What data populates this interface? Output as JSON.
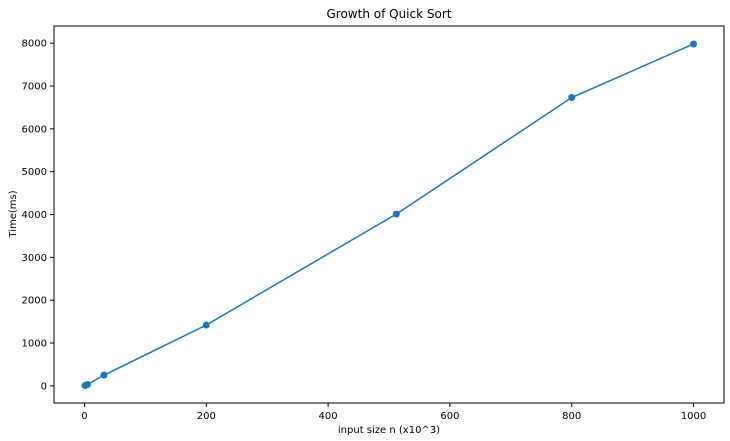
{
  "chart_data": {
    "type": "line",
    "title": "Growth of Quick Sort",
    "xlabel": "input size n (x10^3)",
    "ylabel": "Time(ms)",
    "xlim": [
      -50,
      1050
    ],
    "ylim": [
      -400,
      8400
    ],
    "xticks": [
      0,
      200,
      400,
      600,
      800,
      1000
    ],
    "yticks": [
      0,
      1000,
      2000,
      3000,
      4000,
      5000,
      6000,
      7000,
      8000
    ],
    "grid": false,
    "series": [
      {
        "color": "#1f77b4",
        "marker": "circle",
        "x": [
          1,
          5,
          32,
          200,
          512,
          800,
          1000
        ],
        "y": [
          8,
          32,
          250,
          1420,
          4010,
          6730,
          7980
        ]
      }
    ]
  }
}
